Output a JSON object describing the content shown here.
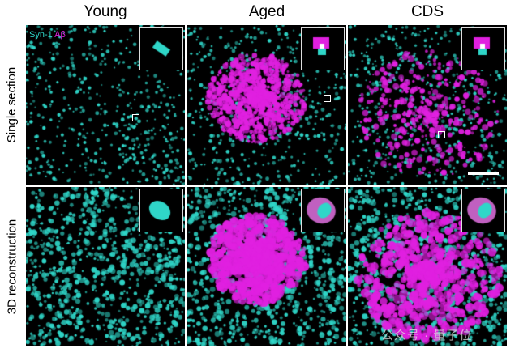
{
  "columns": [
    "Young",
    "Aged",
    "CDS"
  ],
  "rows": [
    "Single section",
    "3D reconstruction"
  ],
  "legend": {
    "syn1": "Syn-1",
    "abeta": "Aβ"
  },
  "colors": {
    "syn1": "#2fd6c8",
    "abeta": "#e020e0",
    "background": "#000000"
  },
  "watermark": "公众号 · 量子位"
}
